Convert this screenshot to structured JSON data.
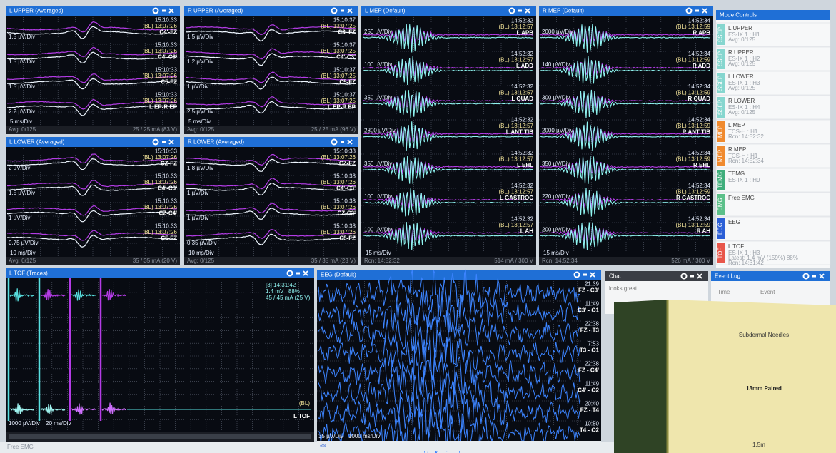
{
  "panels": [
    {
      "title": "L UPPER (Averaged)",
      "timebase": "5 ms/Div",
      "footer_left": "Avg: 0/125",
      "footer_right": "25 / 25 mA (83 V)",
      "traces": [
        {
          "time": "15:10:33",
          "baseline": "(BL) 13:07:26",
          "label": "C4'-FZ",
          "scale": "1.5 µV/Div"
        },
        {
          "time": "15:10:33",
          "baseline": "(BL) 13:07:26",
          "label": "C4'-C3'",
          "scale": "1.5 µV/Div"
        },
        {
          "time": "15:10:33",
          "baseline": "(BL) 13:07:26",
          "label": "C5-FZ",
          "scale": "1.5 µV/Div"
        },
        {
          "time": "15:10:33",
          "baseline": "(BL) 13:07:26",
          "label": "L EP-R EP",
          "scale": "2.2 µV/Div"
        }
      ]
    },
    {
      "title": "R UPPER (Averaged)",
      "timebase": "5 ms/Div",
      "footer_left": "Avg: 0/125",
      "footer_right": "25 / 25 mA (96 V)",
      "traces": [
        {
          "time": "15:10:37",
          "baseline": "(BL) 13:07:25",
          "label": "C3'-FZ",
          "scale": "1.5 µV/Div"
        },
        {
          "time": "15:10:37",
          "baseline": "(BL) 13:07:25",
          "label": "C4'-C3'",
          "scale": "1.2 µV/Div"
        },
        {
          "time": "15:10:37",
          "baseline": "(BL) 13:07:25",
          "label": "C5-FZ",
          "scale": "1 µV/Div"
        },
        {
          "time": "15:10:37",
          "baseline": "(BL) 13:07:25",
          "label": "L EP-R EP",
          "scale": "2.5 µV/Div"
        }
      ]
    },
    {
      "title": "L LOWER (Averaged)",
      "timebase": "10 ms/Div",
      "footer_left": "Avg: 0/125",
      "footer_right": "35 / 35 mA (20 V)",
      "traces": [
        {
          "time": "15:10:33",
          "baseline": "(BL) 13:07:26",
          "label": "CZ-FZ",
          "scale": "2 µV/Div"
        },
        {
          "time": "15:10:33",
          "baseline": "(BL) 13:07:26",
          "label": "C4'-C3'",
          "scale": "1.5 µV/Div"
        },
        {
          "time": "15:10:33",
          "baseline": "(BL) 13:07:26",
          "label": "CZ-C4'",
          "scale": "1 µV/Div"
        },
        {
          "time": "15:10:33",
          "baseline": "(BL) 13:07:26",
          "label": "C5-FZ",
          "scale": "0.75 µV/Div"
        }
      ]
    },
    {
      "title": "R LOWER (Averaged)",
      "timebase": "10 ms/Div",
      "footer_left": "Avg: 0/125",
      "footer_right": "35 / 35 mA (23 V)",
      "traces": [
        {
          "time": "15:10:33",
          "baseline": "(BL) 13:07:26",
          "label": "CZ-FZ",
          "scale": "1.8 µV/Div"
        },
        {
          "time": "15:10:33",
          "baseline": "(BL) 13:07:26",
          "label": "C4'-C3'",
          "scale": "1 µV/Div"
        },
        {
          "time": "15:10:33",
          "baseline": "(BL) 13:07:26",
          "label": "CZ-C3'",
          "scale": "1 µV/Div"
        },
        {
          "time": "15:10:33",
          "baseline": "(BL) 13:07:26",
          "label": "C5-FZ",
          "scale": "0.35 µV/Div"
        }
      ]
    },
    {
      "title": "L MEP (Default)",
      "timebase": "15 ms/Div",
      "footer_left": "Rcn: 14:52:32",
      "footer_right": "514 mA / 300 V",
      "traces": [
        {
          "time": "14:52:32",
          "baseline": "(BL) 13:12:57",
          "label": "L APB",
          "scale": "250 µV/Div"
        },
        {
          "time": "14:52:32",
          "baseline": "(BL) 13:12:57",
          "label": "L ADD",
          "scale": "100 µV/Div"
        },
        {
          "time": "14:52:32",
          "baseline": "(BL) 13:12:57",
          "label": "L QUAD",
          "scale": "350 µV/Div"
        },
        {
          "time": "14:52:32",
          "baseline": "(BL) 13:12:57",
          "label": "L ANT TIB",
          "scale": "2800 µV/Div"
        },
        {
          "time": "14:52:32",
          "baseline": "(BL) 13:12:57",
          "label": "L EHL",
          "scale": "350 µV/Div"
        },
        {
          "time": "14:52:32",
          "baseline": "(BL) 13:12:57",
          "label": "L GASTROC",
          "scale": "100 µV/Div"
        },
        {
          "time": "14:52:32",
          "baseline": "(BL) 13:12:57",
          "label": "L AH",
          "scale": "100 µV/Div"
        }
      ]
    },
    {
      "title": "R MEP (Default)",
      "timebase": "15 ms/Div",
      "footer_left": "Rcn: 14:52:34",
      "footer_right": "526 mA / 300 V",
      "traces": [
        {
          "time": "14:52:34",
          "baseline": "(BL) 13:12:59",
          "label": "R APB",
          "scale": "2000 µV/Div"
        },
        {
          "time": "14:52:34",
          "baseline": "(BL) 13:12:59",
          "label": "R ADD",
          "scale": "140 µV/Div"
        },
        {
          "time": "14:52:34",
          "baseline": "(BL) 13:12:59",
          "label": "R QUAD",
          "scale": "300 µV/Div"
        },
        {
          "time": "14:52:34",
          "baseline": "(BL) 13:12:59",
          "label": "R ANT TIB",
          "scale": "2000 µV/Div"
        },
        {
          "time": "14:52:34",
          "baseline": "(BL) 13:12:59",
          "label": "R EHL",
          "scale": "350 µV/Div"
        },
        {
          "time": "14:52:34",
          "baseline": "(BL) 13:12:59",
          "label": "R GASTROC",
          "scale": "220 µV/Div"
        },
        {
          "time": "14:52:34",
          "baseline": "(BL) 13:12:59",
          "label": "R AH",
          "scale": "200 µV/Div"
        }
      ]
    }
  ],
  "mode_controls": {
    "title": "Mode Controls",
    "items": [
      {
        "tag": "SSEP",
        "name": "L UPPER",
        "details": [
          "ES-IX 1 : H1",
          "Avg: 0/125"
        ]
      },
      {
        "tag": "SSEP",
        "name": "R UPPER",
        "details": [
          "ES-IX 1 : H2",
          "Avg: 0/125"
        ]
      },
      {
        "tag": "SSEP",
        "name": "L LOWER",
        "details": [
          "ES-IX 1 : H3",
          "Avg: 0/125"
        ]
      },
      {
        "tag": "SSEP",
        "name": "R LOWER",
        "details": [
          "ES-IX 1 : H4",
          "Avg: 0/125"
        ]
      },
      {
        "tag": "MEP",
        "name": "L MEP",
        "details": [
          "TCS-H : H1",
          "Rcn: 14:52:32"
        ]
      },
      {
        "tag": "MEP",
        "name": "R MEP",
        "details": [
          "TCS-H : H1",
          "Rcn: 14:52:34"
        ]
      },
      {
        "tag": "TEMG",
        "name": "TEMG",
        "details": [
          "ES-IX 1 : H9"
        ]
      },
      {
        "tag": "EMG",
        "name": "Free EMG",
        "details": []
      },
      {
        "tag": "EEG",
        "name": "EEG",
        "details": []
      },
      {
        "tag": "TOF",
        "name": "L TOF",
        "details": [
          "ES-IX 1 : H3",
          "Latest: 1.4 mV (159%)  88%",
          "Rcn: 14:31:42"
        ]
      }
    ]
  },
  "tof": {
    "title": "L TOF (Traces)",
    "info": [
      "[3] 14:31:42",
      "1.4 mV | 88%",
      "45 / 45 mA (25 V)"
    ],
    "baseline": "(BL)",
    "label": "L TOF",
    "scale": "1000 µV/Div",
    "timebase": "20 ms/Div",
    "bottom_tab": "Free EMG"
  },
  "eeg": {
    "title": "EEG (Default)",
    "scale": "35 µV/Div",
    "timebase": "1000 ms/Div",
    "nav": "«»",
    "channels": [
      {
        "time": "21:39",
        "label": "FZ - C3'"
      },
      {
        "time": "11:49",
        "label": "C3' - O1"
      },
      {
        "time": "22:38",
        "label": "FZ - T3"
      },
      {
        "time": "7:53",
        "label": "T3 - O1"
      },
      {
        "time": "22:38",
        "label": "FZ - C4'"
      },
      {
        "time": "11:49",
        "label": "C4' - O2"
      },
      {
        "time": "20:40",
        "label": "FZ - T4"
      },
      {
        "time": "10:50",
        "label": "T4 - O2"
      }
    ]
  },
  "chat": {
    "title": "Chat",
    "message": "looks great"
  },
  "event_log": {
    "title": "Event Log",
    "columns": [
      "Time",
      "Event"
    ]
  },
  "box": {
    "line1": "Subdermal Needles",
    "line2": "13mm Paired",
    "line3": "1.5m"
  }
}
